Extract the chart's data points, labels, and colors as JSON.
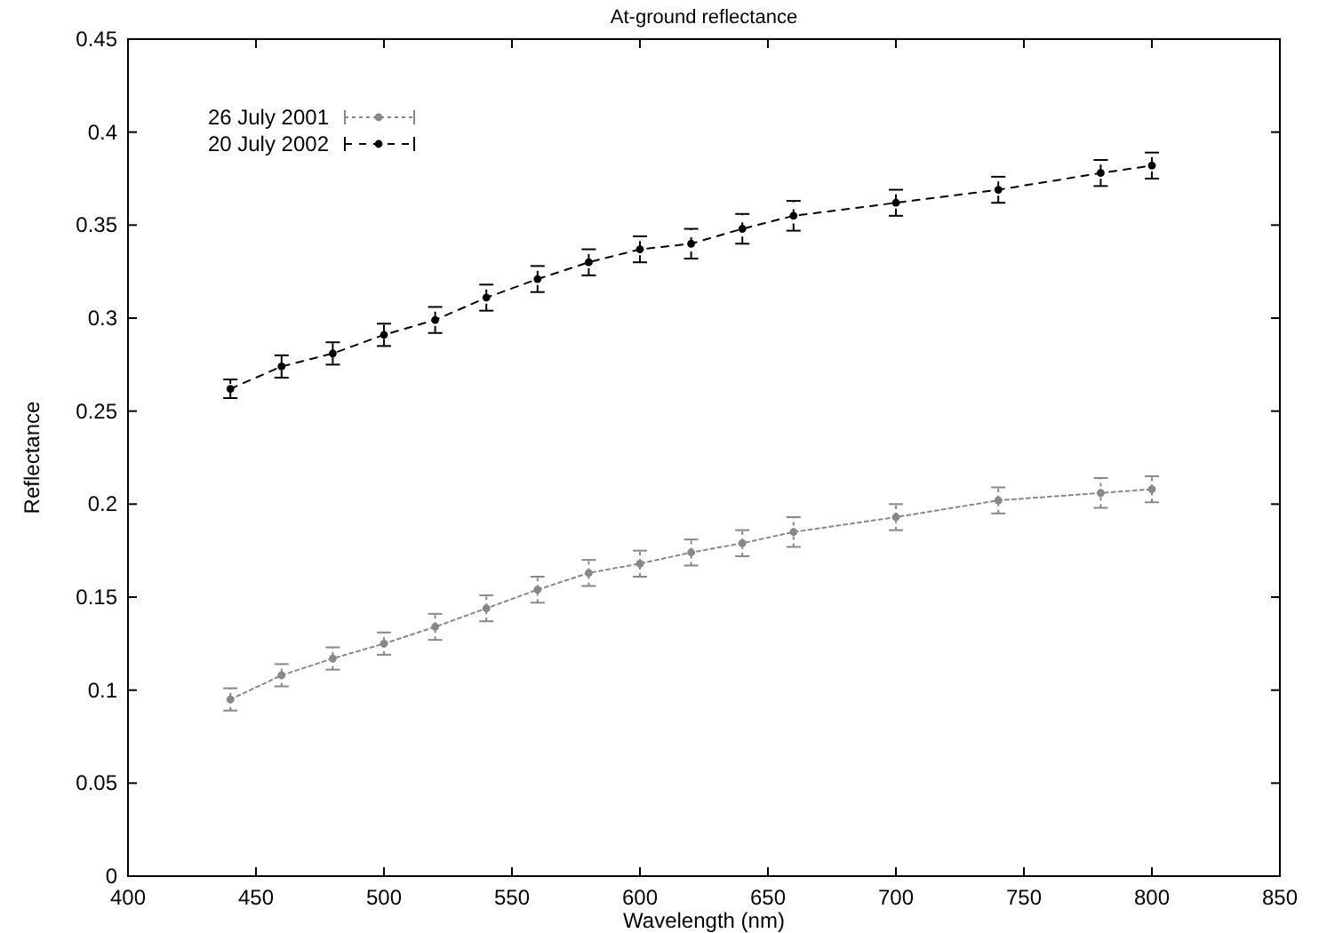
{
  "chart_data": {
    "type": "line",
    "title": "At-ground reflectance",
    "xlabel": "Wavelength (nm)",
    "ylabel": "Reflectance",
    "x": [
      440,
      460,
      480,
      500,
      520,
      540,
      560,
      580,
      600,
      620,
      640,
      660,
      700,
      740,
      780,
      800
    ],
    "series": [
      {
        "name": "26 July 2001",
        "color": "#888888",
        "line_style": "dotted",
        "values": [
          0.095,
          0.108,
          0.117,
          0.125,
          0.134,
          0.144,
          0.154,
          0.163,
          0.168,
          0.174,
          0.179,
          0.185,
          0.193,
          0.202,
          0.206,
          0.208
        ],
        "errors": [
          0.006,
          0.006,
          0.006,
          0.006,
          0.007,
          0.007,
          0.007,
          0.007,
          0.007,
          0.007,
          0.007,
          0.008,
          0.007,
          0.007,
          0.008,
          0.007
        ]
      },
      {
        "name": "20 July 2002",
        "color": "#000000",
        "line_style": "dashed",
        "values": [
          0.262,
          0.274,
          0.281,
          0.291,
          0.299,
          0.311,
          0.321,
          0.33,
          0.337,
          0.34,
          0.348,
          0.355,
          0.362,
          0.369,
          0.378,
          0.382
        ],
        "errors": [
          0.005,
          0.006,
          0.006,
          0.006,
          0.007,
          0.007,
          0.007,
          0.007,
          0.007,
          0.008,
          0.008,
          0.008,
          0.007,
          0.007,
          0.007,
          0.007
        ]
      }
    ],
    "marker": "circle",
    "legend": "top left",
    "grid": false,
    "xlim": [
      400,
      850
    ],
    "xticks": [
      400,
      450,
      500,
      550,
      600,
      650,
      700,
      750,
      800,
      850
    ],
    "ylim": [
      0,
      0.45
    ],
    "yticks": [
      0,
      0.05,
      0.1,
      0.15,
      0.2,
      0.25,
      0.3,
      0.35,
      0.4,
      0.45
    ]
  }
}
